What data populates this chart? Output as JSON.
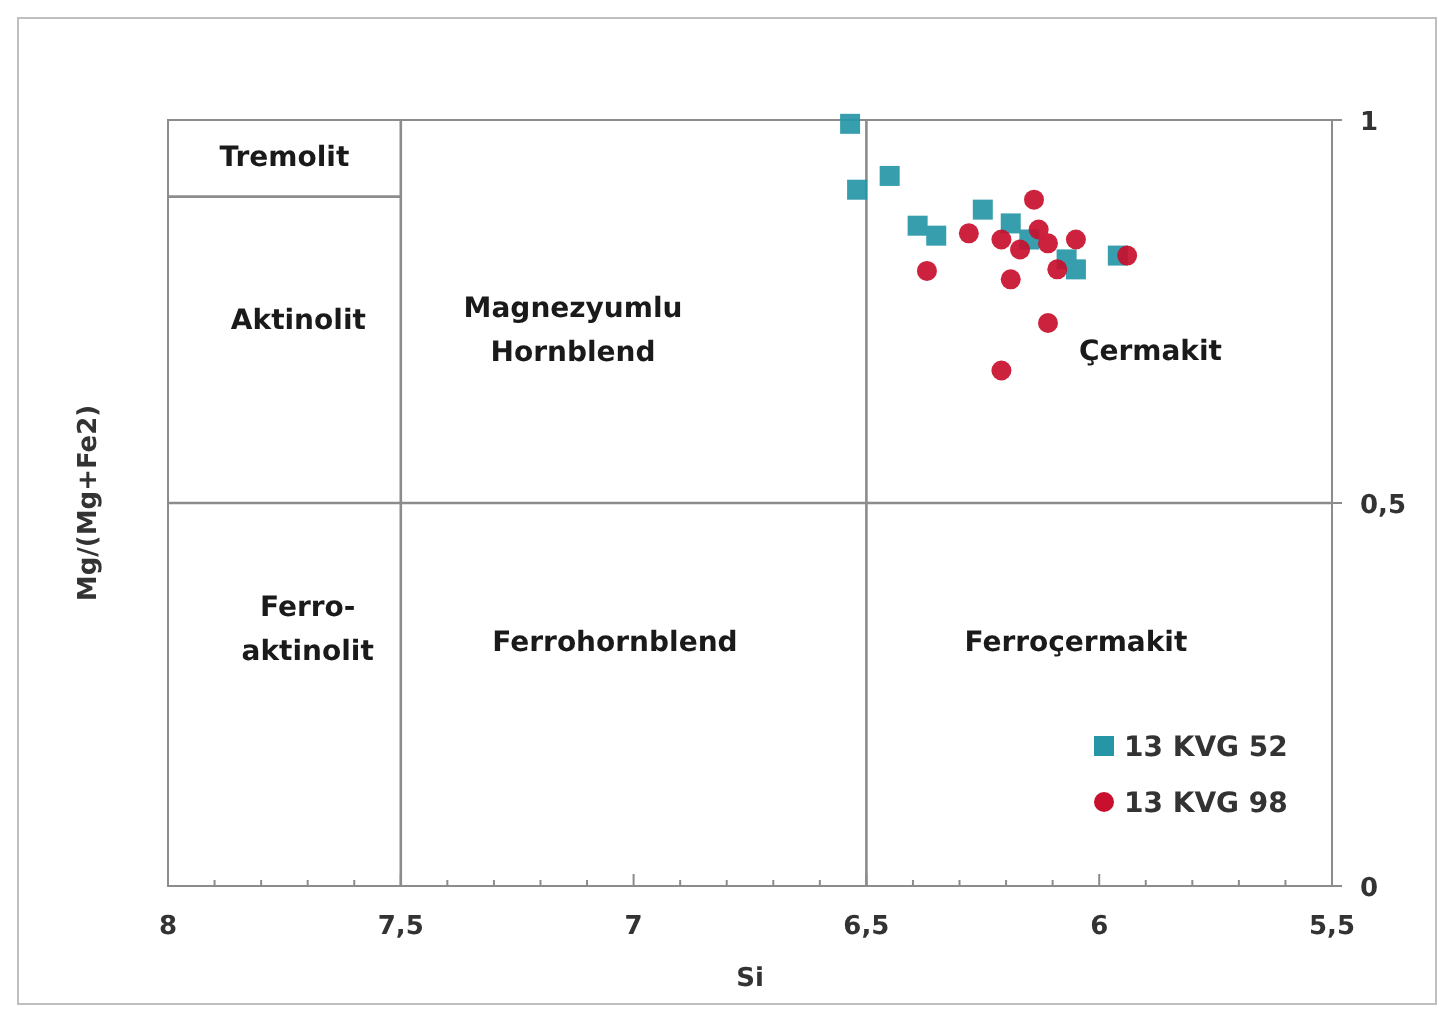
{
  "chart_data": {
    "type": "scatter",
    "xlabel": "Si",
    "ylabel": "Mg/(Mg+Fe2)",
    "xlim": [
      8,
      5.5
    ],
    "ylim": [
      0,
      1
    ],
    "xticks": [
      8,
      {
        "value": 7.9,
        "label": null
      },
      {
        "value": 7.8,
        "label": null
      },
      {
        "value": 7.7,
        "label": null
      },
      {
        "value": 7.6,
        "label": null
      },
      {
        "value": 7.5,
        "label": "7,5"
      },
      {
        "value": 7.4,
        "label": null
      },
      {
        "value": 7.3,
        "label": null
      },
      {
        "value": 7.2,
        "label": null
      },
      {
        "value": 7.1,
        "label": null
      },
      7,
      {
        "value": 6.9,
        "label": null
      },
      {
        "value": 6.8,
        "label": null
      },
      {
        "value": 6.7,
        "label": null
      },
      {
        "value": 6.6,
        "label": null
      },
      {
        "value": 6.5,
        "label": "6,5"
      },
      {
        "value": 6.4,
        "label": null
      },
      {
        "value": 6.3,
        "label": null
      },
      {
        "value": 6.2,
        "label": null
      },
      {
        "value": 6.1,
        "label": null
      },
      6,
      {
        "value": 5.9,
        "label": null
      },
      {
        "value": 5.8,
        "label": null
      },
      {
        "value": 5.7,
        "label": null
      },
      {
        "value": 5.6,
        "label": null
      },
      {
        "value": 5.5,
        "label": "5,5"
      }
    ],
    "yticks": [
      0,
      {
        "value": 0.5,
        "label": "0,5"
      },
      1
    ],
    "legend": "bottom right",
    "ref_lines": [
      {
        "axis": "x",
        "value": 7.5,
        "color": "#8c8c8c"
      },
      {
        "axis": "x",
        "value": 6.5,
        "color": "#8c8c8c"
      },
      {
        "axis": "y",
        "value": 0.5,
        "color": "#8c8c8c"
      }
    ],
    "annotations": [
      "Tremolit",
      "Aktinolit",
      "Magnezyumlu\nHornblend",
      "Çermakit",
      "Ferro-\naktinolit",
      "Ferrohornblend",
      "Ferroçermakit"
    ],
    "series": [
      {
        "type": "line",
        "color": "#8c8c8c",
        "x": [
          8,
          7.5
        ],
        "values": [
          0.9,
          0.9
        ],
        "marker": "none"
      },
      {
        "name": "13 KVG 52",
        "color": "#2596a6",
        "marker": "square",
        "x": [
          6.535,
          6.52,
          6.45,
          6.39,
          6.35,
          6.25,
          6.19,
          6.07,
          5.96,
          6.15,
          6.05
        ],
        "values": [
          0.995,
          0.909,
          0.927,
          0.862,
          0.849,
          0.883,
          0.865,
          0.818,
          0.823,
          0.844,
          0.805
        ]
      },
      {
        "name": "13 KVG 98",
        "color": "#c8102e",
        "marker": "circle",
        "x": [
          6.37,
          6.14,
          6.21,
          6.17,
          6.11,
          6.05,
          6.19,
          6.11,
          6.21,
          5.94,
          6.28,
          6.09,
          6.13
        ],
        "values": [
          0.803,
          0.896,
          0.844,
          0.831,
          0.839,
          0.844,
          0.792,
          0.735,
          0.673,
          0.823,
          0.852,
          0.805,
          0.857
        ]
      }
    ]
  }
}
